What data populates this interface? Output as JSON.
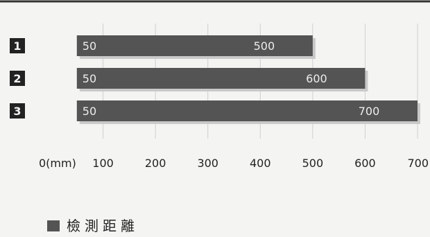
{
  "chart_data": {
    "type": "bar",
    "orientation": "horizontal",
    "categories": [
      "1",
      "2",
      "3"
    ],
    "series": [
      {
        "name": "檢測距離",
        "start_values": [
          50,
          50,
          50
        ],
        "values": [
          500,
          600,
          700
        ],
        "start_labels": [
          "50",
          "50",
          "50"
        ],
        "end_labels": [
          "500",
          "600",
          "700"
        ]
      }
    ],
    "x_axis": {
      "ticks": [
        0,
        100,
        200,
        300,
        400,
        500,
        600,
        700
      ],
      "tick_labels": [
        "0(mm)",
        "100",
        "200",
        "300",
        "400",
        "500",
        "600",
        "700"
      ],
      "xlim": [
        0,
        700
      ]
    },
    "grid": true,
    "legend": {
      "placement": "bottom-left",
      "label": "檢測距離"
    },
    "colors": {
      "bar": "#545454",
      "bar_shadow": "#c9c9c9",
      "category_badge": "#222222",
      "text": "#222222",
      "grid": "#cfcfcf",
      "background": "#f4f4f2"
    }
  }
}
